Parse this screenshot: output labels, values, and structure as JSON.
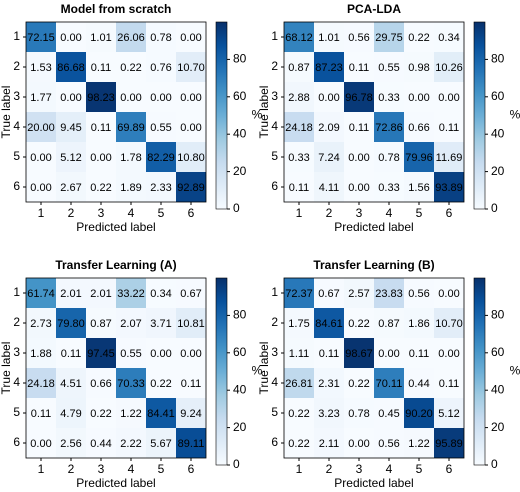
{
  "chart_data": [
    {
      "type": "heatmap",
      "title": "Model from scratch",
      "x_label": "Predicted label",
      "y_label": "True label",
      "x_categories": [
        "1",
        "2",
        "3",
        "4",
        "5",
        "6"
      ],
      "y_categories": [
        "1",
        "2",
        "3",
        "4",
        "5",
        "6"
      ],
      "values": [
        [
          72.15,
          0.0,
          1.01,
          26.06,
          0.78,
          0.0
        ],
        [
          1.53,
          86.68,
          0.11,
          0.22,
          0.76,
          10.7
        ],
        [
          1.77,
          0.0,
          98.23,
          0.0,
          0.0,
          0.0
        ],
        [
          20.0,
          9.45,
          0.11,
          69.89,
          0.55,
          0.0
        ],
        [
          0.0,
          5.12,
          0.0,
          1.78,
          82.29,
          10.8
        ],
        [
          0.0,
          2.67,
          0.22,
          1.89,
          2.33,
          92.89
        ]
      ],
      "value_labels": [
        [
          "72.15",
          "0.00",
          "1.01",
          "26.06",
          "0.78",
          "0.00"
        ],
        [
          "1.53",
          "86.68",
          "0.11",
          "0.22",
          "0.76",
          "10.70"
        ],
        [
          "1.77",
          "0.00",
          "98.23",
          "0.00",
          "0.00",
          "0.00"
        ],
        [
          "20.00",
          "9.45",
          "0.11",
          "69.89",
          "0.55",
          "0.00"
        ],
        [
          "0.00",
          "5.12",
          "0.00",
          "1.78",
          "82.29",
          "10.80"
        ],
        [
          "0.00",
          "2.67",
          "0.22",
          "1.89",
          "2.33",
          "92.89"
        ]
      ],
      "colormap": "Blues",
      "colorbar_label": "%",
      "clim": [
        0,
        100
      ],
      "cticks": [
        0,
        20,
        40,
        60,
        80
      ]
    },
    {
      "type": "heatmap",
      "title": "PCA-LDA",
      "x_label": "Predicted label",
      "y_label": "True label",
      "x_categories": [
        "1",
        "2",
        "3",
        "4",
        "5",
        "6"
      ],
      "y_categories": [
        "1",
        "2",
        "3",
        "4",
        "5",
        "6"
      ],
      "values": [
        [
          68.12,
          1.01,
          0.56,
          29.75,
          0.22,
          0.34
        ],
        [
          0.87,
          87.23,
          0.11,
          0.55,
          0.98,
          10.26
        ],
        [
          2.88,
          0.0,
          96.78,
          0.33,
          0.0,
          0.0
        ],
        [
          24.18,
          2.09,
          0.11,
          72.86,
          0.66,
          0.11
        ],
        [
          0.33,
          7.24,
          0.0,
          0.78,
          79.96,
          11.69
        ],
        [
          0.11,
          4.11,
          0.0,
          0.33,
          1.56,
          93.89
        ]
      ],
      "value_labels": [
        [
          "68.12",
          "1.01",
          "0.56",
          "29.75",
          "0.22",
          "0.34"
        ],
        [
          "0.87",
          "87.23",
          "0.11",
          "0.55",
          "0.98",
          "10.26"
        ],
        [
          "2.88",
          "0.00",
          "96.78",
          "0.33",
          "0.00",
          "0.00"
        ],
        [
          "24.18",
          "2.09",
          "0.11",
          "72.86",
          "0.66",
          "0.11"
        ],
        [
          "0.33",
          "7.24",
          "0.00",
          "0.78",
          "79.96",
          "11.69"
        ],
        [
          "0.11",
          "4.11",
          "0.00",
          "0.33",
          "1.56",
          "93.89"
        ]
      ],
      "colormap": "Blues",
      "colorbar_label": "%",
      "clim": [
        0,
        100
      ],
      "cticks": [
        0,
        20,
        40,
        60,
        80
      ]
    },
    {
      "type": "heatmap",
      "title": "Transfer Learning (A)",
      "x_label": "Predicted label",
      "y_label": "True label",
      "x_categories": [
        "1",
        "2",
        "3",
        "4",
        "5",
        "6"
      ],
      "y_categories": [
        "1",
        "2",
        "3",
        "4",
        "5",
        "6"
      ],
      "values": [
        [
          61.74,
          2.01,
          2.01,
          33.22,
          0.34,
          0.67
        ],
        [
          2.73,
          79.8,
          0.87,
          2.07,
          3.71,
          10.81
        ],
        [
          1.88,
          0.11,
          97.45,
          0.55,
          0.0,
          0.0
        ],
        [
          24.18,
          4.51,
          0.66,
          70.33,
          0.22,
          0.11
        ],
        [
          0.11,
          4.79,
          0.22,
          1.22,
          84.41,
          9.24
        ],
        [
          0.0,
          2.56,
          0.44,
          2.22,
          5.67,
          89.11
        ]
      ],
      "value_labels": [
        [
          "61.74",
          "2.01",
          "2.01",
          "33.22",
          "0.34",
          "0.67"
        ],
        [
          "2.73",
          "79.80",
          "0.87",
          "2.07",
          "3.71",
          "10.81"
        ],
        [
          "1.88",
          "0.11",
          "97.45",
          "0.55",
          "0.00",
          "0.00"
        ],
        [
          "24.18",
          "4.51",
          "0.66",
          "70.33",
          "0.22",
          "0.11"
        ],
        [
          "0.11",
          "4.79",
          "0.22",
          "1.22",
          "84.41",
          "9.24"
        ],
        [
          "0.00",
          "2.56",
          "0.44",
          "2.22",
          "5.67",
          "89.11"
        ]
      ],
      "colormap": "Blues",
      "colorbar_label": "%",
      "clim": [
        0,
        100
      ],
      "cticks": [
        0,
        20,
        40,
        60,
        80
      ]
    },
    {
      "type": "heatmap",
      "title": "Transfer Learning (B)",
      "x_label": "Predicted label",
      "y_label": "True label",
      "x_categories": [
        "1",
        "2",
        "3",
        "4",
        "5",
        "6"
      ],
      "y_categories": [
        "1",
        "2",
        "3",
        "4",
        "5",
        "6"
      ],
      "values": [
        [
          72.37,
          0.67,
          2.57,
          23.83,
          0.56,
          0.0
        ],
        [
          1.75,
          84.61,
          0.22,
          0.87,
          1.86,
          10.7
        ],
        [
          1.11,
          0.11,
          98.67,
          0.0,
          0.11,
          0.0
        ],
        [
          26.81,
          2.31,
          0.22,
          70.11,
          0.44,
          0.11
        ],
        [
          0.22,
          3.23,
          0.78,
          0.45,
          90.2,
          5.12
        ],
        [
          0.22,
          2.11,
          0.0,
          0.56,
          1.22,
          95.89
        ]
      ],
      "value_labels": [
        [
          "72.37",
          "0.67",
          "2.57",
          "23.83",
          "0.56",
          "0.00"
        ],
        [
          "1.75",
          "84.61",
          "0.22",
          "0.87",
          "1.86",
          "10.70"
        ],
        [
          "1.11",
          "0.11",
          "98.67",
          "0.00",
          "0.11",
          "0.00"
        ],
        [
          "26.81",
          "2.31",
          "0.22",
          "70.11",
          "0.44",
          "0.11"
        ],
        [
          "0.22",
          "3.23",
          "0.78",
          "0.45",
          "90.20",
          "5.12"
        ],
        [
          "0.22",
          "2.11",
          "0.00",
          "0.56",
          "1.22",
          "95.89"
        ]
      ],
      "colormap": "Blues",
      "colorbar_label": "%",
      "clim": [
        0,
        100
      ],
      "cticks": [
        0,
        20,
        40,
        60,
        80
      ]
    }
  ]
}
